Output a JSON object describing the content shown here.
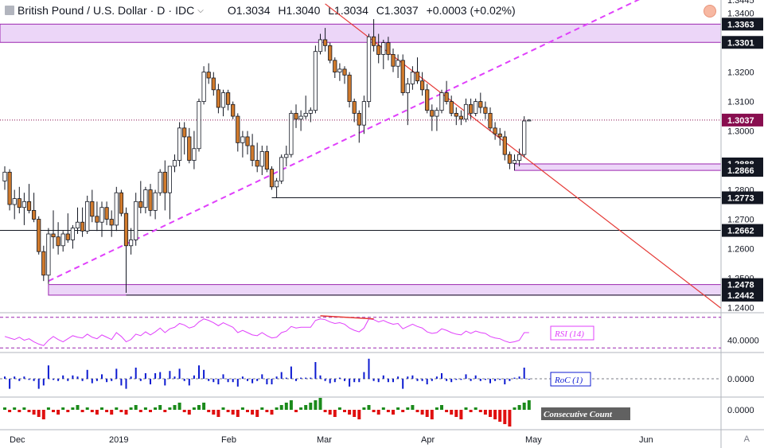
{
  "header": {
    "symbol": "British Pound / U.S. Dollar",
    "interval": "D",
    "exchange": "IDC",
    "open": "O1.3034",
    "high": "H1.3040",
    "low": "L1.3034",
    "close": "C1.3037",
    "change": "+0.0003 (+0.02%)"
  },
  "colors": {
    "up": "#ffffff",
    "down": "#d07a2c",
    "wick": "#131722",
    "zone_fill": "#e6c8f5",
    "zone_stroke": "#9c27b0",
    "trend_red": "#e53935",
    "trend_magenta": "#e040fb",
    "price_tag": "#131722",
    "last_price_tag": "#880e4f",
    "rsi_line": "#e040fb",
    "roc_bar": "#0d1bd1",
    "cons_up": "#1b8a1b",
    "cons_down": "#e01010"
  },
  "chart_data": {
    "type": "candlestick",
    "y_range": [
      1.2385,
      1.3445
    ],
    "y_ticks": [
      "1.3445",
      "1.3400",
      "1.3200",
      "1.3100",
      "1.3000",
      "1.2800",
      "1.2700",
      "1.2600",
      "1.2500",
      "1.2400"
    ],
    "x_labels": [
      "Dec",
      "2019",
      "Feb",
      "Mar",
      "Apr",
      "May",
      "Jun"
    ],
    "last_price": "1.3037",
    "levels": [
      {
        "value": 1.3301,
        "label": "1.3301"
      },
      {
        "value": 1.2888,
        "label": "1.2888"
      },
      {
        "value": 1.2866,
        "label": "1.2866"
      },
      {
        "value": 1.2773,
        "label": "1.2773"
      },
      {
        "value": 1.2662,
        "label": "1.2662"
      },
      {
        "value": 1.2478,
        "label": "1.2478"
      },
      {
        "value": 1.2442,
        "label": "1.2442"
      }
    ],
    "zones": [
      {
        "low": 1.3301,
        "high": 1.3363,
        "label": "1.3363"
      },
      {
        "low": 1.2866,
        "high": 1.2888
      },
      {
        "low": 1.2442,
        "high": 1.2478
      }
    ],
    "candles": [
      [
        1.283,
        1.288,
        1.28,
        1.286
      ],
      [
        1.286,
        1.287,
        1.273,
        1.275
      ],
      [
        1.275,
        1.28,
        1.27,
        1.277
      ],
      [
        1.277,
        1.281,
        1.272,
        1.274
      ],
      [
        1.274,
        1.279,
        1.268,
        1.276
      ],
      [
        1.276,
        1.282,
        1.272,
        1.273
      ],
      [
        1.273,
        1.279,
        1.269,
        1.27
      ],
      [
        1.27,
        1.271,
        1.258,
        1.259
      ],
      [
        1.259,
        1.261,
        1.249,
        1.251
      ],
      [
        1.251,
        1.267,
        1.248,
        1.265
      ],
      [
        1.265,
        1.273,
        1.26,
        1.264
      ],
      [
        1.264,
        1.269,
        1.258,
        1.261
      ],
      [
        1.261,
        1.266,
        1.259,
        1.265
      ],
      [
        1.265,
        1.272,
        1.262,
        1.263
      ],
      [
        1.263,
        1.268,
        1.26,
        1.267
      ],
      [
        1.267,
        1.274,
        1.265,
        1.269
      ],
      [
        1.269,
        1.274,
        1.264,
        1.266
      ],
      [
        1.266,
        1.278,
        1.265,
        1.276
      ],
      [
        1.276,
        1.28,
        1.269,
        1.271
      ],
      [
        1.271,
        1.276,
        1.266,
        1.269
      ],
      [
        1.269,
        1.276,
        1.264,
        1.274
      ],
      [
        1.274,
        1.276,
        1.268,
        1.27
      ],
      [
        1.27,
        1.273,
        1.264,
        1.268
      ],
      [
        1.268,
        1.281,
        1.266,
        1.279
      ],
      [
        1.279,
        1.28,
        1.271,
        1.272
      ],
      [
        1.272,
        1.274,
        1.245,
        1.261
      ],
      [
        1.261,
        1.267,
        1.258,
        1.263
      ],
      [
        1.263,
        1.279,
        1.261,
        1.276
      ],
      [
        1.276,
        1.283,
        1.272,
        1.274
      ],
      [
        1.274,
        1.281,
        1.272,
        1.28
      ],
      [
        1.28,
        1.282,
        1.271,
        1.273
      ],
      [
        1.273,
        1.28,
        1.27,
        1.279
      ],
      [
        1.279,
        1.287,
        1.278,
        1.286
      ],
      [
        1.286,
        1.29,
        1.273,
        1.279
      ],
      [
        1.279,
        1.288,
        1.27,
        1.288
      ],
      [
        1.288,
        1.292,
        1.286,
        1.29
      ],
      [
        1.29,
        1.303,
        1.288,
        1.301
      ],
      [
        1.301,
        1.303,
        1.292,
        1.298
      ],
      [
        1.298,
        1.301,
        1.289,
        1.29
      ],
      [
        1.29,
        1.3,
        1.287,
        1.294
      ],
      [
        1.294,
        1.311,
        1.293,
        1.31
      ],
      [
        1.31,
        1.322,
        1.309,
        1.32
      ],
      [
        1.32,
        1.323,
        1.316,
        1.318
      ],
      [
        1.318,
        1.32,
        1.312,
        1.314
      ],
      [
        1.314,
        1.316,
        1.306,
        1.308
      ],
      [
        1.308,
        1.314,
        1.305,
        1.313
      ],
      [
        1.313,
        1.314,
        1.307,
        1.309
      ],
      [
        1.309,
        1.31,
        1.304,
        1.305
      ],
      [
        1.305,
        1.306,
        1.293,
        1.296
      ],
      [
        1.296,
        1.3,
        1.291,
        1.298
      ],
      [
        1.298,
        1.3,
        1.292,
        1.295
      ],
      [
        1.295,
        1.299,
        1.288,
        1.29
      ],
      [
        1.29,
        1.296,
        1.286,
        1.288
      ],
      [
        1.288,
        1.295,
        1.285,
        1.293
      ],
      [
        1.293,
        1.295,
        1.286,
        1.287
      ],
      [
        1.287,
        1.288,
        1.28,
        1.281
      ],
      [
        1.281,
        1.284,
        1.2773,
        1.283
      ],
      [
        1.283,
        1.292,
        1.282,
        1.291
      ],
      [
        1.291,
        1.295,
        1.288,
        1.292
      ],
      [
        1.292,
        1.307,
        1.291,
        1.306
      ],
      [
        1.306,
        1.309,
        1.301,
        1.304
      ],
      [
        1.304,
        1.307,
        1.3,
        1.305
      ],
      [
        1.305,
        1.312,
        1.304,
        1.306
      ],
      [
        1.306,
        1.308,
        1.303,
        1.307
      ],
      [
        1.307,
        1.329,
        1.306,
        1.327
      ],
      [
        1.327,
        1.333,
        1.326,
        1.331
      ],
      [
        1.331,
        1.335,
        1.327,
        1.329
      ],
      [
        1.329,
        1.33,
        1.323,
        1.324
      ],
      [
        1.324,
        1.325,
        1.318,
        1.32
      ],
      [
        1.32,
        1.323,
        1.317,
        1.321
      ],
      [
        1.321,
        1.322,
        1.316,
        1.319
      ],
      [
        1.319,
        1.32,
        1.308,
        1.31
      ],
      [
        1.31,
        1.311,
        1.303,
        1.306
      ],
      [
        1.306,
        1.307,
        1.296,
        1.302
      ],
      [
        1.302,
        1.312,
        1.299,
        1.31
      ],
      [
        1.31,
        1.333,
        1.308,
        1.332
      ],
      [
        1.332,
        1.338,
        1.327,
        1.329
      ],
      [
        1.329,
        1.333,
        1.323,
        1.326
      ],
      [
        1.326,
        1.331,
        1.321,
        1.33
      ],
      [
        1.33,
        1.332,
        1.324,
        1.326
      ],
      [
        1.326,
        1.328,
        1.32,
        1.322
      ],
      [
        1.322,
        1.326,
        1.318,
        1.324
      ],
      [
        1.324,
        1.326,
        1.312,
        1.313
      ],
      [
        1.313,
        1.318,
        1.302,
        1.316
      ],
      [
        1.316,
        1.322,
        1.314,
        1.32
      ],
      [
        1.32,
        1.325,
        1.316,
        1.317
      ],
      [
        1.317,
        1.32,
        1.312,
        1.314
      ],
      [
        1.314,
        1.316,
        1.306,
        1.307
      ],
      [
        1.307,
        1.309,
        1.3,
        1.305
      ],
      [
        1.305,
        1.308,
        1.3,
        1.307
      ],
      [
        1.307,
        1.314,
        1.306,
        1.313
      ],
      [
        1.313,
        1.317,
        1.309,
        1.31
      ],
      [
        1.31,
        1.312,
        1.305,
        1.306
      ],
      [
        1.306,
        1.308,
        1.302,
        1.305
      ],
      [
        1.305,
        1.307,
        1.302,
        1.304
      ],
      [
        1.304,
        1.311,
        1.303,
        1.309
      ],
      [
        1.309,
        1.311,
        1.304,
        1.306
      ],
      [
        1.306,
        1.311,
        1.305,
        1.31
      ],
      [
        1.31,
        1.313,
        1.306,
        1.308
      ],
      [
        1.308,
        1.31,
        1.304,
        1.306
      ],
      [
        1.306,
        1.308,
        1.3,
        1.301
      ],
      [
        1.301,
        1.303,
        1.297,
        1.299
      ],
      [
        1.299,
        1.301,
        1.295,
        1.298
      ],
      [
        1.298,
        1.3,
        1.29,
        1.292
      ],
      [
        1.292,
        1.293,
        1.287,
        1.289
      ],
      [
        1.289,
        1.292,
        1.2866,
        1.29
      ],
      [
        1.29,
        1.294,
        1.288,
        1.292
      ],
      [
        1.292,
        1.305,
        1.291,
        1.3034
      ],
      [
        1.3034,
        1.304,
        1.3034,
        1.3037
      ]
    ],
    "trendlines": [
      {
        "style": "solid",
        "color": "red",
        "from": [
          66,
          1.3432
        ],
        "to": [
          136,
          1.2544
        ]
      },
      {
        "style": "dashed",
        "color": "magenta",
        "from": [
          9,
          1.249
        ],
        "to": [
          120,
          1.3363
        ]
      }
    ],
    "rsi": {
      "label": "RSI (14)",
      "tick": "40.0000",
      "values": [
        45,
        43,
        41,
        44,
        40,
        42,
        38,
        35,
        33,
        40,
        45,
        41,
        38,
        42,
        46,
        44,
        43,
        48,
        44,
        42,
        47,
        44,
        41,
        50,
        45,
        38,
        41,
        48,
        46,
        51,
        47,
        51,
        56,
        50,
        55,
        57,
        62,
        60,
        56,
        58,
        64,
        68,
        66,
        63,
        59,
        63,
        60,
        57,
        50,
        53,
        50,
        47,
        46,
        50,
        46,
        43,
        44,
        50,
        52,
        58,
        56,
        57,
        57,
        57,
        66,
        68,
        67,
        64,
        62,
        63,
        61,
        56,
        53,
        51,
        56,
        68,
        67,
        64,
        66,
        63,
        61,
        62,
        55,
        58,
        61,
        58,
        56,
        51,
        49,
        50,
        55,
        53,
        50,
        48,
        47,
        52,
        49,
        52,
        50,
        49,
        45,
        43,
        42,
        39,
        37,
        38,
        40,
        50,
        50
      ]
    },
    "roc": {
      "label": "RoC (1)",
      "tick": "0.0000",
      "values": [
        0.2,
        -0.9,
        0.2,
        -0.2,
        0.2,
        -0.1,
        -0.2,
        -0.9,
        -0.6,
        1.2,
        -0.1,
        -0.2,
        0.3,
        -0.2,
        0.3,
        0.2,
        -0.2,
        0.8,
        -0.4,
        -0.2,
        0.4,
        -0.3,
        -0.2,
        0.9,
        -0.6,
        -0.9,
        0.2,
        1.0,
        -0.2,
        0.5,
        -0.5,
        0.5,
        0.6,
        -0.6,
        0.7,
        0.2,
        0.9,
        -0.2,
        -0.6,
        0.3,
        1.2,
        0.8,
        -0.2,
        -0.3,
        -0.5,
        0.4,
        -0.3,
        -0.3,
        -0.7,
        0.2,
        -0.2,
        -0.4,
        -0.2,
        0.4,
        -0.5,
        -0.5,
        0.2,
        0.6,
        0.1,
        1.1,
        -0.2,
        0.1,
        0.1,
        0.1,
        1.5,
        0.3,
        -0.2,
        -0.4,
        -0.3,
        0.1,
        -0.2,
        -0.7,
        -0.3,
        -0.3,
        0.6,
        1.8,
        -0.2,
        -0.3,
        0.3,
        -0.3,
        -0.3,
        0.2,
        -0.9,
        0.2,
        0.3,
        -0.2,
        -0.2,
        -0.5,
        -0.2,
        0.2,
        0.5,
        -0.2,
        -0.3,
        -0.1,
        -0.1,
        0.4,
        -0.2,
        0.3,
        -0.2,
        -0.1,
        -0.4,
        -0.2,
        -0.1,
        -0.5,
        -0.2,
        0.1,
        0.2,
        1.0,
        0.0
      ]
    },
    "consecutive": {
      "label": "Consecutive Count",
      "tick": "0.0000",
      "values": [
        1,
        -1,
        1,
        -1,
        1,
        -1,
        -2,
        -3,
        -4,
        1,
        -1,
        -2,
        1,
        -1,
        1,
        2,
        -1,
        1,
        -1,
        -2,
        1,
        -1,
        -2,
        1,
        -1,
        -2,
        1,
        2,
        -1,
        1,
        -1,
        1,
        2,
        -1,
        1,
        2,
        3,
        -1,
        -2,
        1,
        2,
        3,
        -1,
        -2,
        -3,
        1,
        -1,
        -2,
        -3,
        1,
        -1,
        -2,
        -3,
        1,
        -1,
        -2,
        1,
        2,
        3,
        4,
        -1,
        1,
        2,
        3,
        4,
        5,
        -1,
        -2,
        -3,
        1,
        -1,
        -2,
        -3,
        -4,
        1,
        2,
        -1,
        -2,
        1,
        -1,
        -2,
        1,
        -1,
        1,
        2,
        -1,
        -2,
        -3,
        -4,
        1,
        2,
        -1,
        -2,
        -3,
        -4,
        1,
        -1,
        1,
        -1,
        -2,
        -3,
        -4,
        -5,
        -6,
        -7,
        1,
        2,
        3,
        4
      ]
    }
  }
}
